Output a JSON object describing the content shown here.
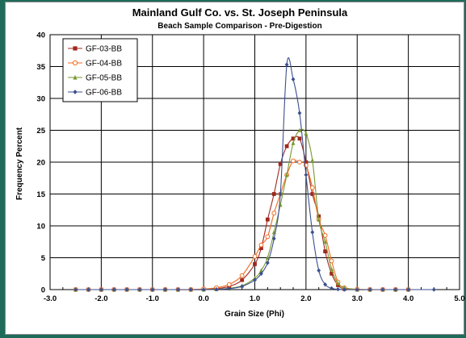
{
  "chart_data": {
    "type": "line",
    "title": "Mainland Gulf Co. vs. St. Joseph Peninsula",
    "subtitle": "Beach Sample Comparison - Pre-Digestion",
    "xlabel": "Grain Size (Phi)",
    "ylabel": "Frequency Percent",
    "xlim": [
      -3.0,
      5.0
    ],
    "ylim": [
      0,
      40
    ],
    "xticks": [
      "-3.0",
      "-2.0",
      "-1.0",
      "0.0",
      "1.0",
      "2.0",
      "3.0",
      "4.0",
      "5.0"
    ],
    "yticks": [
      "0",
      "5",
      "10",
      "15",
      "20",
      "25",
      "30",
      "35",
      "40"
    ],
    "grid": true,
    "legend_position": "top-left",
    "series": [
      {
        "name": "GF-03-BB",
        "color": "#a0281e",
        "marker": "square",
        "points": [
          [
            -2.5,
            0
          ],
          [
            -2.25,
            0
          ],
          [
            -2.0,
            0
          ],
          [
            -1.75,
            0
          ],
          [
            -1.5,
            0
          ],
          [
            -1.25,
            0
          ],
          [
            -1.0,
            0
          ],
          [
            -0.75,
            0
          ],
          [
            -0.5,
            0
          ],
          [
            -0.25,
            0
          ],
          [
            0.0,
            0.05
          ],
          [
            0.25,
            0.15
          ],
          [
            0.5,
            0.5
          ],
          [
            0.75,
            1.5
          ],
          [
            1.0,
            4.0
          ],
          [
            1.125,
            6.5
          ],
          [
            1.25,
            11.0
          ],
          [
            1.375,
            15.0
          ],
          [
            1.5,
            19.7
          ],
          [
            1.625,
            22.5
          ],
          [
            1.75,
            23.7
          ],
          [
            1.875,
            23.7
          ],
          [
            2.0,
            20.0
          ],
          [
            2.125,
            15.0
          ],
          [
            2.25,
            11.5
          ],
          [
            2.375,
            6.0
          ],
          [
            2.5,
            2.5
          ],
          [
            2.625,
            0.7
          ],
          [
            2.75,
            0.1
          ],
          [
            3.0,
            0
          ],
          [
            3.25,
            0
          ],
          [
            3.5,
            0
          ],
          [
            3.75,
            0
          ],
          [
            4.0,
            0
          ]
        ]
      },
      {
        "name": "GF-04-BB",
        "color": "#f06a1e",
        "marker": "circle",
        "points": [
          [
            -2.5,
            0
          ],
          [
            -2.25,
            0
          ],
          [
            -2.0,
            0
          ],
          [
            -1.75,
            0
          ],
          [
            -1.5,
            0
          ],
          [
            -1.25,
            0
          ],
          [
            -1.0,
            0
          ],
          [
            -0.75,
            0
          ],
          [
            -0.5,
            0
          ],
          [
            -0.25,
            0
          ],
          [
            0.0,
            0.1
          ],
          [
            0.25,
            0.3
          ],
          [
            0.5,
            0.8
          ],
          [
            0.75,
            2.2
          ],
          [
            1.0,
            5.2
          ],
          [
            1.125,
            7.0
          ],
          [
            1.25,
            8.3
          ],
          [
            1.375,
            12.0
          ],
          [
            1.5,
            15.0
          ],
          [
            1.625,
            18.0
          ],
          [
            1.75,
            20.2
          ],
          [
            1.875,
            20.0
          ],
          [
            2.0,
            19.5
          ],
          [
            2.125,
            16.0
          ],
          [
            2.25,
            11.0
          ],
          [
            2.375,
            8.5
          ],
          [
            2.5,
            4.5
          ],
          [
            2.625,
            1.2
          ],
          [
            2.75,
            0.3
          ],
          [
            3.0,
            0.05
          ],
          [
            3.25,
            0
          ],
          [
            3.5,
            0
          ],
          [
            3.75,
            0
          ],
          [
            4.0,
            0
          ]
        ]
      },
      {
        "name": "GF-05-BB",
        "color": "#7a9a30",
        "marker": "triangle",
        "points": [
          [
            -2.5,
            0
          ],
          [
            -2.25,
            0
          ],
          [
            -2.0,
            0
          ],
          [
            -1.75,
            0
          ],
          [
            -1.5,
            0
          ],
          [
            -1.25,
            0
          ],
          [
            -1.0,
            0
          ],
          [
            -0.75,
            0
          ],
          [
            -0.5,
            0
          ],
          [
            -0.25,
            0
          ],
          [
            0.0,
            0
          ],
          [
            0.25,
            0.05
          ],
          [
            0.5,
            0.2
          ],
          [
            0.75,
            0.6
          ],
          [
            1.0,
            1.8
          ],
          [
            1.125,
            3.0
          ],
          [
            1.25,
            5.0
          ],
          [
            1.375,
            9.0
          ],
          [
            1.5,
            13.3
          ],
          [
            1.625,
            18.0
          ],
          [
            1.75,
            23.0
          ],
          [
            1.875,
            25.0
          ],
          [
            2.0,
            24.5
          ],
          [
            2.125,
            20.3
          ],
          [
            2.25,
            11.0
          ],
          [
            2.375,
            7.5
          ],
          [
            2.5,
            3.2
          ],
          [
            2.625,
            1.0
          ],
          [
            2.75,
            0.3
          ],
          [
            3.0,
            0
          ],
          [
            3.25,
            0
          ],
          [
            3.5,
            0
          ],
          [
            3.75,
            0
          ],
          [
            4.0,
            0
          ]
        ]
      },
      {
        "name": "GF-06-BB",
        "color": "#3b4f8f",
        "marker": "diamond",
        "points": [
          [
            -2.5,
            0
          ],
          [
            -2.25,
            0
          ],
          [
            -2.0,
            0
          ],
          [
            -1.75,
            0
          ],
          [
            -1.5,
            0
          ],
          [
            -1.25,
            0
          ],
          [
            -1.0,
            0
          ],
          [
            -0.75,
            0
          ],
          [
            -0.5,
            0
          ],
          [
            -0.25,
            0
          ],
          [
            0.0,
            0
          ],
          [
            0.25,
            0.05
          ],
          [
            0.5,
            0.15
          ],
          [
            0.75,
            0.5
          ],
          [
            1.0,
            1.5
          ],
          [
            1.125,
            2.5
          ],
          [
            1.25,
            4.2
          ],
          [
            1.375,
            8.0
          ],
          [
            1.5,
            15.0
          ],
          [
            1.625,
            35.3
          ],
          [
            1.75,
            33.0
          ],
          [
            1.875,
            27.7
          ],
          [
            2.0,
            18.0
          ],
          [
            2.125,
            9.0
          ],
          [
            2.25,
            3.0
          ],
          [
            2.375,
            0.8
          ],
          [
            2.5,
            0.2
          ],
          [
            2.625,
            0.05
          ],
          [
            2.75,
            0
          ],
          [
            3.0,
            0
          ],
          [
            3.25,
            0
          ],
          [
            3.5,
            0
          ],
          [
            3.75,
            0
          ],
          [
            4.0,
            0
          ],
          [
            4.5,
            0
          ]
        ]
      }
    ]
  }
}
